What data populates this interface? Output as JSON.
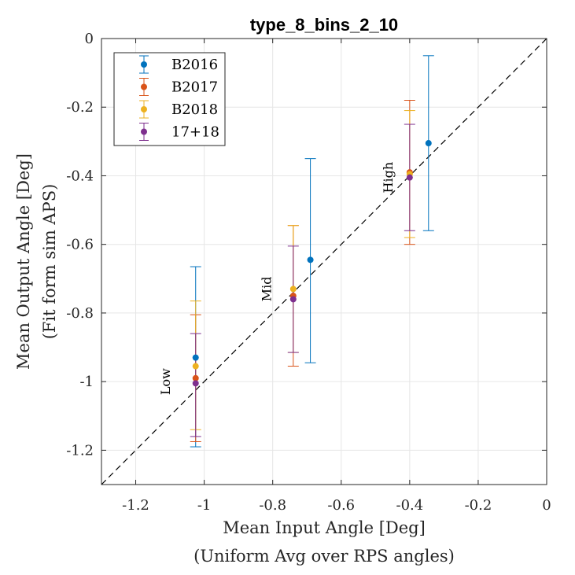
{
  "chart_data": {
    "type": "scatter",
    "title": "type_8_bins_2_10",
    "xlabel": [
      "Mean Input Angle [Deg]",
      "(Uniform Avg over RPS angles)"
    ],
    "ylabel": [
      "Mean Output Angle [Deg]",
      "(Fit form sim APS)"
    ],
    "xlim": [
      -1.3,
      0
    ],
    "ylim": [
      -1.3,
      0
    ],
    "xticks": [
      -1.2,
      -1,
      -0.8,
      -0.6,
      -0.4,
      -0.2,
      0
    ],
    "xtick_labels": [
      "-1.2",
      "-1",
      "-0.8",
      "-0.6",
      "-0.4",
      "-0.2",
      "0"
    ],
    "yticks": [
      -1.2,
      -1,
      -0.8,
      -0.6,
      -0.4,
      -0.2,
      0
    ],
    "ytick_labels": [
      "-1.2",
      "-1",
      "-0.8",
      "-0.6",
      "-0.4",
      "-0.2",
      "0"
    ],
    "grid": true,
    "legend_position": "top-left",
    "reference_line": "y = x (dashed)",
    "series": [
      {
        "name": "B2016",
        "color": "#0072BD",
        "x": [
          -1.025,
          -0.69,
          -0.345
        ],
        "y": [
          -0.93,
          -0.645,
          -0.305
        ],
        "err_low": [
          -1.19,
          -0.945,
          -0.56
        ],
        "err_high": [
          -0.665,
          -0.35,
          -0.05
        ]
      },
      {
        "name": "B2017",
        "color": "#D95319",
        "x": [
          -1.025,
          -0.74,
          -0.4
        ],
        "y": [
          -0.99,
          -0.75,
          -0.39
        ],
        "err_low": [
          -1.175,
          -0.955,
          -0.6
        ],
        "err_high": [
          -0.805,
          -0.545,
          -0.18
        ]
      },
      {
        "name": "B2018",
        "color": "#EDB120",
        "x": [
          -1.025,
          -0.74,
          -0.4
        ],
        "y": [
          -0.955,
          -0.73,
          -0.395
        ],
        "err_low": [
          -1.14,
          -0.915,
          -0.58
        ],
        "err_high": [
          -0.765,
          -0.545,
          -0.21
        ]
      },
      {
        "name": "17+18",
        "color": "#7E2F8E",
        "x": [
          -1.025,
          -0.74,
          -0.4
        ],
        "y": [
          -1.005,
          -0.76,
          -0.405
        ],
        "err_low": [
          -1.16,
          -0.915,
          -0.56
        ],
        "err_high": [
          -0.86,
          -0.605,
          -0.25
        ]
      }
    ],
    "annotations": [
      {
        "text": "Low",
        "x": -1.1,
        "y": -1.0
      },
      {
        "text": "Mid",
        "x": -0.805,
        "y": -0.73
      },
      {
        "text": "High",
        "x": -0.45,
        "y": -0.405
      }
    ]
  }
}
